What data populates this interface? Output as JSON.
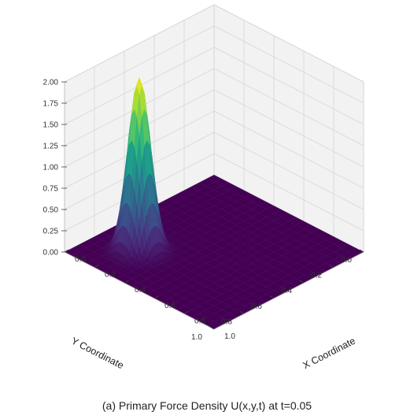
{
  "caption": "(a) Primary Force Density U(x,y,t) at t=0.05",
  "chart_data": {
    "type": "surface3d",
    "title": "",
    "xlabel": "X Coordinate",
    "ylabel": "Y Coordinate",
    "zlabel": "",
    "xlim": [
      0,
      1
    ],
    "ylim": [
      0,
      1
    ],
    "zlim": [
      0,
      2
    ],
    "xticks": [
      "0.0",
      "0.2",
      "0.4",
      "0.6",
      "0.8",
      "1.0"
    ],
    "yticks": [
      "0.0",
      "0.2",
      "0.4",
      "0.6",
      "0.8",
      "1.0"
    ],
    "zticks": [
      "0.00",
      "0.25",
      "0.50",
      "0.75",
      "1.00",
      "1.25",
      "1.50",
      "1.75",
      "2.00"
    ],
    "grid": true,
    "colormap": "viridis",
    "peak": {
      "x": 0.25,
      "y": 0.75,
      "value": 2.05,
      "sigma": 0.055
    },
    "baseline": 0.0,
    "colors": {
      "pane": "#f2f2f2",
      "grid": "#d6d6d6",
      "floor": "#440154"
    }
  }
}
